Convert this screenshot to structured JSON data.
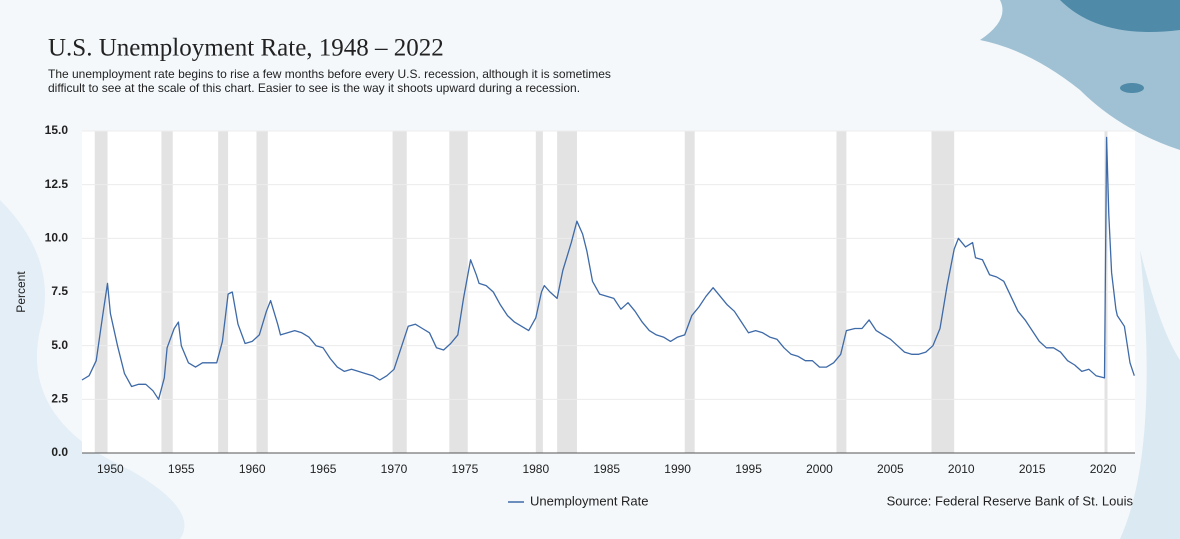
{
  "chart_data": {
    "type": "line",
    "title": "U.S. Unemployment Rate, 1948 – 2022",
    "subtitle": "The unemployment rate begins to rise a few months before every U.S. recession, although it is sometimes difficult to see at the scale of this chart. Easier to see is the way it shoots upward during a recession.",
    "y_label": "Percent",
    "source": "Source: Federal Reserve Bank of St. Louis",
    "xlim": [
      1948,
      2022.25
    ],
    "xticks": [
      1950,
      1955,
      1960,
      1965,
      1970,
      1975,
      1980,
      1985,
      1990,
      1995,
      2000,
      2005,
      2010,
      2015,
      2020
    ],
    "ylim": [
      0,
      15
    ],
    "yticks": [
      {
        "value": 0,
        "label": "0.0"
      },
      2.5,
      {
        "value": 5,
        "label": "5.0"
      },
      7.5,
      {
        "value": 10,
        "label": "10.0"
      },
      12.5,
      {
        "value": 15,
        "label": "15.0"
      }
    ],
    "grid": true,
    "recessions": [
      [
        1948.9,
        1949.8
      ],
      [
        1953.6,
        1954.4
      ],
      [
        1957.6,
        1958.3
      ],
      [
        1960.3,
        1961.1
      ],
      [
        1969.9,
        1970.9
      ],
      [
        1973.9,
        1975.2
      ],
      [
        1980.0,
        1980.5
      ],
      [
        1981.5,
        1982.9
      ],
      [
        1990.5,
        1991.2
      ],
      [
        2001.2,
        2001.9
      ],
      [
        2007.9,
        2009.5
      ],
      [
        2020.1,
        2020.3
      ]
    ],
    "x": [
      1948.0,
      1948.5,
      1949.0,
      1949.5,
      1949.8,
      1950.0,
      1950.5,
      1951.0,
      1951.5,
      1952.0,
      1952.5,
      1953.0,
      1953.4,
      1953.8,
      1954.0,
      1954.5,
      1954.8,
      1955.0,
      1955.5,
      1956.0,
      1956.5,
      1957.0,
      1957.5,
      1957.9,
      1958.3,
      1958.6,
      1959.0,
      1959.5,
      1960.0,
      1960.5,
      1961.0,
      1961.3,
      1961.8,
      1962.0,
      1962.5,
      1963.0,
      1963.5,
      1964.0,
      1964.5,
      1965.0,
      1965.5,
      1966.0,
      1966.5,
      1967.0,
      1967.5,
      1968.0,
      1968.5,
      1969.0,
      1969.5,
      1970.0,
      1970.5,
      1971.0,
      1971.5,
      1972.0,
      1972.5,
      1973.0,
      1973.5,
      1974.0,
      1974.5,
      1974.9,
      1975.4,
      1975.8,
      1976.0,
      1976.5,
      1977.0,
      1977.5,
      1978.0,
      1978.5,
      1979.0,
      1979.5,
      1980.0,
      1980.4,
      1980.6,
      1981.0,
      1981.5,
      1981.9,
      1982.5,
      1982.9,
      1983.3,
      1983.6,
      1984.0,
      1984.5,
      1985.0,
      1985.5,
      1986.0,
      1986.5,
      1987.0,
      1987.5,
      1988.0,
      1988.5,
      1989.0,
      1989.5,
      1990.0,
      1990.5,
      1991.0,
      1991.5,
      1992.0,
      1992.5,
      1993.0,
      1993.5,
      1994.0,
      1994.5,
      1995.0,
      1995.5,
      1996.0,
      1996.5,
      1997.0,
      1997.5,
      1998.0,
      1998.5,
      1999.0,
      1999.5,
      2000.0,
      2000.5,
      2001.0,
      2001.5,
      2001.9,
      2002.5,
      2003.0,
      2003.5,
      2004.0,
      2004.5,
      2005.0,
      2005.5,
      2006.0,
      2006.5,
      2007.0,
      2007.5,
      2008.0,
      2008.5,
      2009.0,
      2009.5,
      2009.8,
      2010.3,
      2010.8,
      2011.0,
      2011.5,
      2012.0,
      2012.5,
      2013.0,
      2013.5,
      2014.0,
      2014.5,
      2015.0,
      2015.5,
      2016.0,
      2016.5,
      2017.0,
      2017.5,
      2018.0,
      2018.5,
      2019.0,
      2019.5,
      2020.1,
      2020.25,
      2020.4,
      2020.6,
      2020.9,
      2021.0,
      2021.5,
      2021.9,
      2022.2
    ],
    "series": [
      {
        "name": "Unemployment Rate",
        "color": "#3e6aa8",
        "values": [
          3.4,
          3.6,
          4.3,
          6.6,
          7.9,
          6.5,
          5.0,
          3.7,
          3.1,
          3.2,
          3.2,
          2.9,
          2.5,
          3.5,
          4.9,
          5.8,
          6.1,
          5.0,
          4.2,
          4.0,
          4.2,
          4.2,
          4.2,
          5.2,
          7.4,
          7.5,
          6.0,
          5.1,
          5.2,
          5.5,
          6.6,
          7.1,
          6.0,
          5.5,
          5.6,
          5.7,
          5.6,
          5.4,
          5.0,
          4.9,
          4.4,
          4.0,
          3.8,
          3.9,
          3.8,
          3.7,
          3.6,
          3.4,
          3.6,
          3.9,
          4.9,
          5.9,
          6.0,
          5.8,
          5.6,
          4.9,
          4.8,
          5.1,
          5.5,
          7.2,
          9.0,
          8.3,
          7.9,
          7.8,
          7.5,
          6.9,
          6.4,
          6.1,
          5.9,
          5.7,
          6.3,
          7.5,
          7.8,
          7.5,
          7.2,
          8.5,
          9.8,
          10.8,
          10.2,
          9.4,
          8.0,
          7.4,
          7.3,
          7.2,
          6.7,
          7.0,
          6.6,
          6.1,
          5.7,
          5.5,
          5.4,
          5.2,
          5.4,
          5.5,
          6.4,
          6.8,
          7.3,
          7.7,
          7.3,
          6.9,
          6.6,
          6.1,
          5.6,
          5.7,
          5.6,
          5.4,
          5.3,
          4.9,
          4.6,
          4.5,
          4.3,
          4.3,
          4.0,
          4.0,
          4.2,
          4.6,
          5.7,
          5.8,
          5.8,
          6.2,
          5.7,
          5.5,
          5.3,
          5.0,
          4.7,
          4.6,
          4.6,
          4.7,
          5.0,
          5.8,
          7.8,
          9.5,
          10.0,
          9.6,
          9.8,
          9.1,
          9.0,
          8.3,
          8.2,
          8.0,
          7.3,
          6.6,
          6.2,
          5.7,
          5.2,
          4.9,
          4.9,
          4.7,
          4.3,
          4.1,
          3.8,
          3.9,
          3.6,
          3.5,
          14.7,
          11.1,
          8.4,
          6.7,
          6.4,
          5.9,
          4.2,
          3.6
        ]
      }
    ]
  }
}
